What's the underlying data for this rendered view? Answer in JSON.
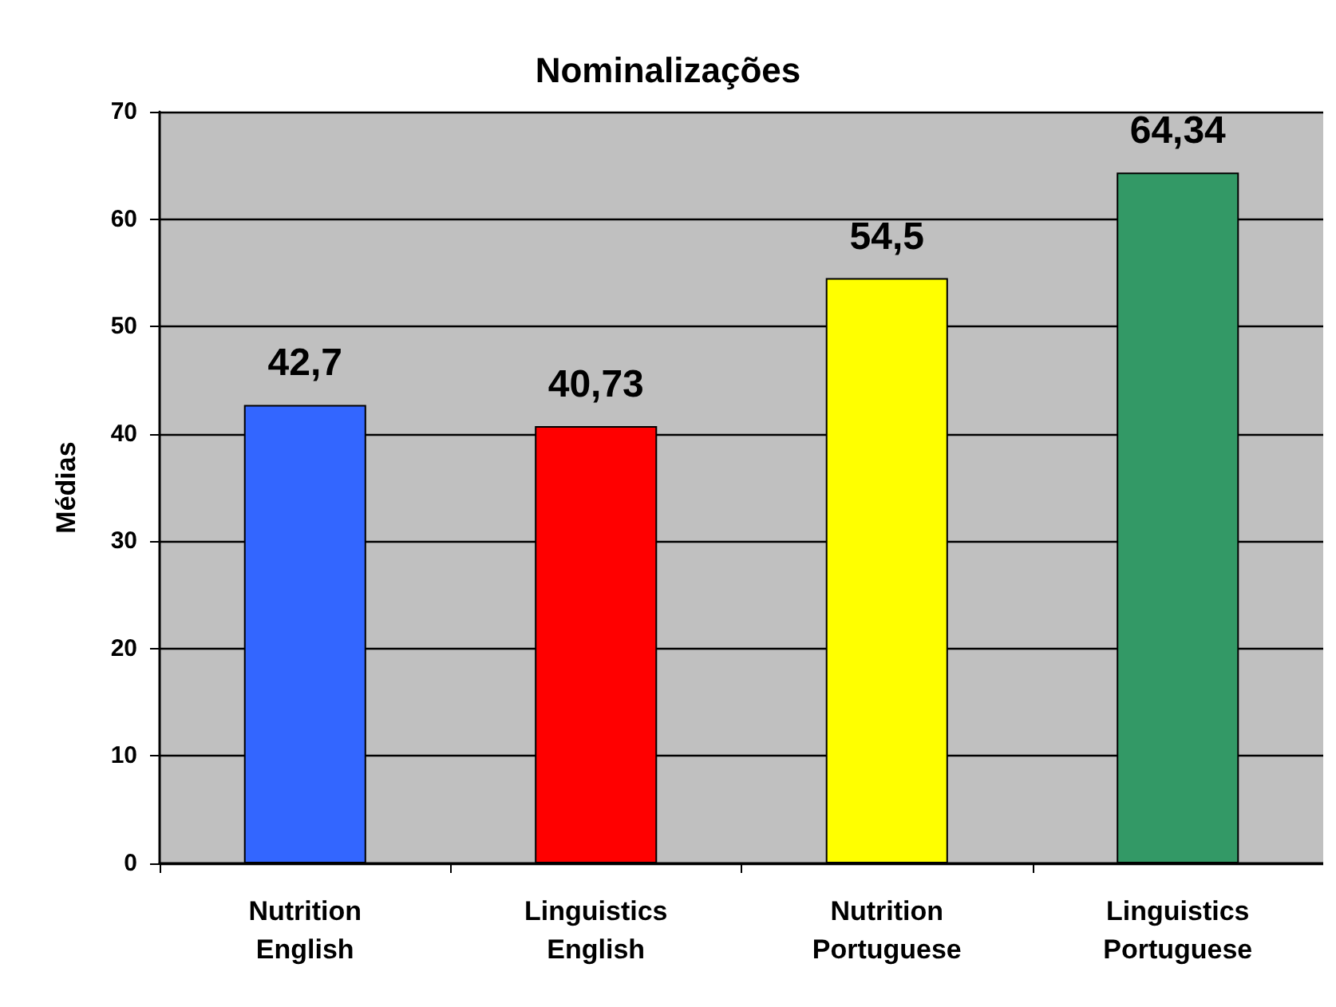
{
  "chart_data": {
    "type": "bar",
    "title": "Nominalizações",
    "ylabel": "Médias",
    "categories": [
      "Nutrition\nEnglish",
      "Linguistics\nEnglish",
      "Nutrition\nPortuguese",
      "Linguistics\nPortuguese"
    ],
    "values": [
      42.7,
      40.73,
      54.5,
      64.34
    ],
    "value_labels": [
      "42,7",
      "40,73",
      "54,5",
      "64,34"
    ],
    "colors": [
      "#3366ff",
      "#ff0000",
      "#ffff00",
      "#339966"
    ],
    "ylim": [
      0,
      70
    ],
    "yticks": [
      0,
      10,
      20,
      30,
      40,
      50,
      60,
      70
    ],
    "grid": "y"
  }
}
